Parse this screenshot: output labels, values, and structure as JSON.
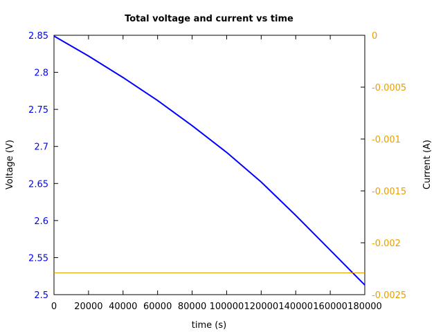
{
  "chart_data": {
    "type": "line",
    "title": "Total voltage and current vs time",
    "xlabel": "time (s)",
    "ylabel": "Voltage (V)",
    "y2label": "Current (A)",
    "xlim": [
      0,
      180000
    ],
    "ylim": [
      2.5,
      2.85
    ],
    "y2lim": [
      -0.0025,
      0
    ],
    "xticks": [
      "0",
      "20000",
      "40000",
      "60000",
      "80000",
      "100000",
      "120000",
      "140000",
      "160000",
      "180000"
    ],
    "xtick_values": [
      0,
      20000,
      40000,
      60000,
      80000,
      100000,
      120000,
      140000,
      160000,
      180000
    ],
    "yticks": [
      "2.5",
      "2.55",
      "2.6",
      "2.65",
      "2.7",
      "2.75",
      "2.8",
      "2.85"
    ],
    "ytick_values": [
      2.5,
      2.55,
      2.6,
      2.65,
      2.7,
      2.75,
      2.8,
      2.85
    ],
    "y2ticks": [
      "0",
      "-0.0005",
      "-0.001",
      "-0.0015",
      "-0.002",
      "-0.0025"
    ],
    "y2tick_values": [
      0,
      -0.0005,
      -0.001,
      -0.0015,
      -0.002,
      -0.0025
    ],
    "grid": false,
    "colors": {
      "voltage": "#0000ff",
      "current": "#e69f00",
      "left_axis_text": "#0000ff",
      "right_axis_text": "#e69f00"
    },
    "series": [
      {
        "axis": "left",
        "x": [
          0,
          20000,
          40000,
          60000,
          80000,
          100000,
          120000,
          140000,
          160000,
          180000
        ],
        "y": [
          2.849,
          2.822,
          2.793,
          2.762,
          2.728,
          2.692,
          2.652,
          2.607,
          2.56,
          2.513
        ]
      },
      {
        "axis": "right",
        "x": [
          0,
          180000
        ],
        "y": [
          -0.00229,
          -0.00229
        ]
      }
    ]
  }
}
